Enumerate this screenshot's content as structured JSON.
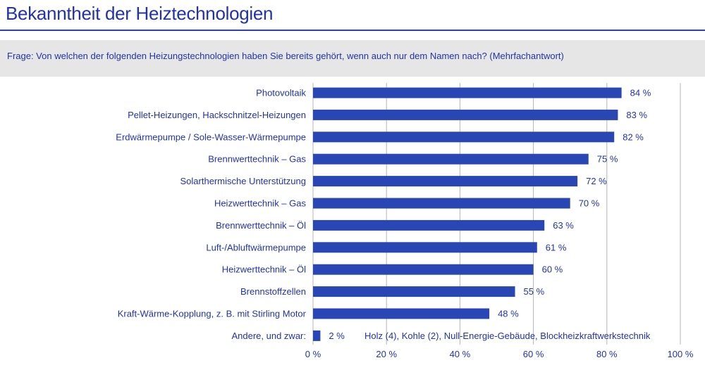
{
  "title": "Bekanntheit der Heiztechnologien",
  "question": "Frage: Von welchen der folgenden Heizungstechnologien haben Sie bereits gehört, wenn auch nur dem Namen nach? (Mehrfachantwort)",
  "colors": {
    "bar": "#2a46b4",
    "text": "#2233aa",
    "grid": "#b5b5b5",
    "rule": "#2f3fbf",
    "box": "#e6e6e6"
  },
  "chart_data": {
    "type": "bar",
    "orientation": "horizontal",
    "categories": [
      "Photovoltaik",
      "Pellet-Heizungen, Hackschnitzel-Heizungen",
      "Erdwärmepumpe / Sole-Wasser-Wärmepumpe",
      "Brennwerttechnik – Gas",
      "Solarthermische Unterstützung",
      "Heizwerttechnik – Gas",
      "Brennwerttechnik – Öl",
      "Luft-/Abluftwärmepumpe",
      "Heizwerttechnik – Öl",
      "Brennstoffzellen",
      "Kraft-Wärme-Kopplung, z. B. mit Stirling Motor",
      "Andere, und zwar:"
    ],
    "values": [
      84,
      83,
      82,
      75,
      72,
      70,
      63,
      61,
      60,
      55,
      48,
      2
    ],
    "value_labels": [
      "84 %",
      "83 %",
      "82 %",
      "75 %",
      "72 %",
      "70 %",
      "63 %",
      "61 %",
      "60 %",
      "55 %",
      "48 %",
      "2 %"
    ],
    "annotation": "Holz (4), Kohle (2), Null-Energie-Gebäude, Blockheizkraftwerkstechnik",
    "xlim": [
      0,
      100
    ],
    "xticks": [
      0,
      20,
      40,
      60,
      80,
      100
    ],
    "xtick_labels": [
      "0 %",
      "20 %",
      "40 %",
      "60 %",
      "80 %",
      "100 %"
    ],
    "grid": true
  }
}
